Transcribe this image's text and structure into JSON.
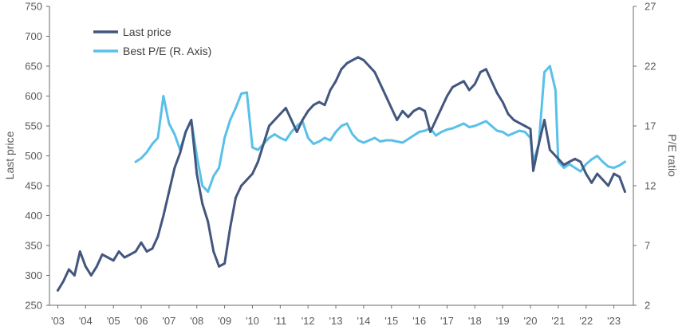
{
  "chart_data": {
    "type": "line",
    "title": "",
    "xlabel": "",
    "ylabel": "Last price",
    "y2label": "P/E ratio",
    "x_ticks": [
      "'03",
      "'04",
      "'05",
      "'06",
      "'07",
      "'08",
      "'09",
      "'10",
      "'11",
      "'12",
      "'13",
      "'14",
      "'15",
      "'16",
      "'17",
      "'18",
      "'19",
      "'20",
      "'21",
      "'22",
      "'23"
    ],
    "ylim": [
      250,
      750
    ],
    "y_ticks": [
      250,
      300,
      350,
      400,
      450,
      500,
      550,
      600,
      650,
      700,
      750
    ],
    "y2lim": [
      2,
      27
    ],
    "y2_ticks": [
      2,
      7,
      12,
      17,
      22,
      27
    ],
    "grid": false,
    "legend_position": "top-left",
    "colors": {
      "last_price": "#43567e",
      "pe": "#59c0e8",
      "axis": "#6b6b6b"
    },
    "series": [
      {
        "name": "Last price",
        "axis": "left",
        "x": [
          2003.0,
          2003.2,
          2003.4,
          2003.6,
          2003.8,
          2004.0,
          2004.2,
          2004.4,
          2004.6,
          2004.8,
          2005.0,
          2005.2,
          2005.4,
          2005.6,
          2005.8,
          2006.0,
          2006.2,
          2006.4,
          2006.6,
          2006.8,
          2007.0,
          2007.2,
          2007.4,
          2007.6,
          2007.8,
          2008.0,
          2008.2,
          2008.4,
          2008.6,
          2008.8,
          2009.0,
          2009.2,
          2009.4,
          2009.6,
          2009.8,
          2010.0,
          2010.2,
          2010.4,
          2010.6,
          2010.8,
          2011.0,
          2011.2,
          2011.4,
          2011.6,
          2011.8,
          2012.0,
          2012.2,
          2012.4,
          2012.6,
          2012.8,
          2013.0,
          2013.2,
          2013.4,
          2013.6,
          2013.8,
          2014.0,
          2014.2,
          2014.4,
          2014.6,
          2014.8,
          2015.0,
          2015.2,
          2015.4,
          2015.6,
          2015.8,
          2016.0,
          2016.2,
          2016.4,
          2016.6,
          2016.8,
          2017.0,
          2017.2,
          2017.4,
          2017.6,
          2017.8,
          2018.0,
          2018.2,
          2018.4,
          2018.6,
          2018.8,
          2019.0,
          2019.2,
          2019.4,
          2019.6,
          2019.8,
          2020.0,
          2020.1,
          2020.3,
          2020.5,
          2020.7,
          2020.9,
          2021.0,
          2021.2,
          2021.4,
          2021.6,
          2021.8,
          2022.0,
          2022.2,
          2022.4,
          2022.6,
          2022.8,
          2023.0,
          2023.2,
          2023.4
        ],
        "values": [
          275,
          290,
          310,
          300,
          340,
          315,
          300,
          315,
          335,
          330,
          325,
          340,
          330,
          335,
          340,
          355,
          340,
          345,
          365,
          400,
          440,
          480,
          505,
          540,
          560,
          470,
          420,
          390,
          340,
          315,
          320,
          380,
          430,
          450,
          460,
          470,
          490,
          520,
          550,
          560,
          570,
          580,
          560,
          540,
          560,
          575,
          585,
          590,
          585,
          610,
          625,
          645,
          655,
          660,
          665,
          660,
          650,
          640,
          620,
          600,
          580,
          560,
          575,
          565,
          575,
          580,
          575,
          540,
          560,
          580,
          600,
          615,
          620,
          625,
          610,
          620,
          640,
          645,
          625,
          605,
          590,
          570,
          560,
          555,
          550,
          545,
          475,
          520,
          560,
          510,
          500,
          495,
          485,
          490,
          495,
          490,
          470,
          455,
          470,
          460,
          450,
          470,
          465,
          440
        ]
      },
      {
        "name": "Best P/E (R. Axis)",
        "axis": "right",
        "x": [
          2005.8,
          2006.0,
          2006.2,
          2006.4,
          2006.6,
          2006.8,
          2007.0,
          2007.2,
          2007.4,
          2007.6,
          2007.8,
          2008.0,
          2008.2,
          2008.4,
          2008.6,
          2008.8,
          2009.0,
          2009.2,
          2009.4,
          2009.6,
          2009.8,
          2010.0,
          2010.2,
          2010.4,
          2010.6,
          2010.8,
          2011.0,
          2011.2,
          2011.4,
          2011.6,
          2011.8,
          2012.0,
          2012.2,
          2012.4,
          2012.6,
          2012.8,
          2013.0,
          2013.2,
          2013.4,
          2013.6,
          2013.8,
          2014.0,
          2014.2,
          2014.4,
          2014.6,
          2014.8,
          2015.0,
          2015.2,
          2015.4,
          2015.6,
          2015.8,
          2016.0,
          2016.2,
          2016.4,
          2016.6,
          2016.8,
          2017.0,
          2017.2,
          2017.4,
          2017.6,
          2017.8,
          2018.0,
          2018.2,
          2018.4,
          2018.6,
          2018.8,
          2019.0,
          2019.2,
          2019.4,
          2019.6,
          2019.8,
          2020.0,
          2020.1,
          2020.3,
          2020.5,
          2020.7,
          2020.9,
          2021.0,
          2021.2,
          2021.4,
          2021.6,
          2021.8,
          2022.0,
          2022.2,
          2022.4,
          2022.6,
          2022.8,
          2023.0,
          2023.2,
          2023.4
        ],
        "values": [
          14.0,
          14.3,
          14.8,
          15.5,
          16.0,
          19.5,
          17.2,
          16.3,
          15.0,
          16.5,
          17.5,
          14.5,
          12.0,
          11.5,
          12.8,
          13.5,
          16.0,
          17.5,
          18.5,
          19.7,
          19.8,
          15.2,
          15.0,
          15.5,
          16.0,
          16.3,
          16.0,
          15.8,
          16.5,
          17.0,
          17.4,
          16.0,
          15.5,
          15.7,
          16.0,
          15.8,
          16.5,
          17.0,
          17.2,
          16.3,
          15.8,
          15.6,
          15.8,
          16.0,
          15.7,
          15.8,
          15.8,
          15.7,
          15.6,
          15.9,
          16.2,
          16.5,
          16.6,
          16.8,
          16.2,
          16.5,
          16.7,
          16.8,
          17.0,
          17.2,
          16.9,
          17.0,
          17.2,
          17.4,
          17.0,
          16.6,
          16.5,
          16.2,
          16.4,
          16.6,
          16.5,
          16.0,
          14.0,
          15.5,
          21.5,
          22.0,
          20.0,
          14.0,
          13.5,
          13.8,
          13.5,
          13.2,
          13.8,
          14.2,
          14.5,
          14.0,
          13.6,
          13.5,
          13.7,
          14.0
        ]
      }
    ]
  }
}
